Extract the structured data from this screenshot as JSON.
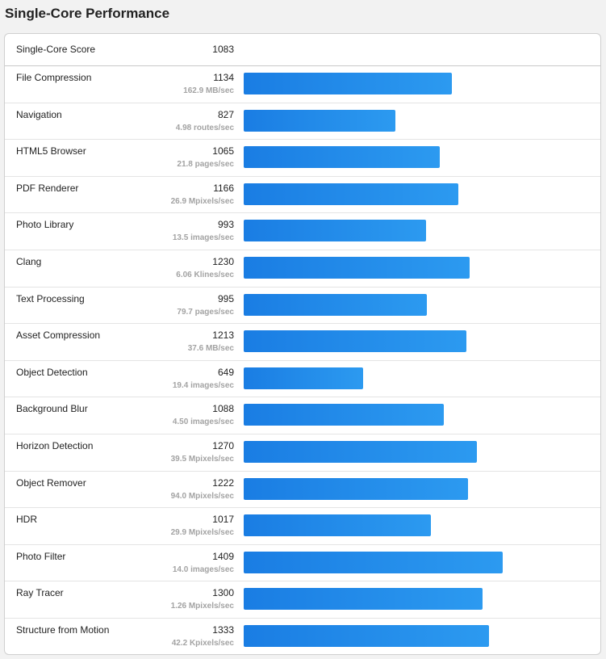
{
  "title": "Single-Core Performance",
  "summary": {
    "label": "Single-Core Score",
    "score": "1083"
  },
  "bar_scale_max": 1800,
  "colors": {
    "bar_start": "#1a7de3",
    "bar_end": "#2c9af0"
  },
  "benchmarks": [
    {
      "name": "File Compression",
      "score": "1134",
      "rate": "162.9 MB/sec"
    },
    {
      "name": "Navigation",
      "score": "827",
      "rate": "4.98 routes/sec"
    },
    {
      "name": "HTML5 Browser",
      "score": "1065",
      "rate": "21.8 pages/sec"
    },
    {
      "name": "PDF Renderer",
      "score": "1166",
      "rate": "26.9 Mpixels/sec"
    },
    {
      "name": "Photo Library",
      "score": "993",
      "rate": "13.5 images/sec"
    },
    {
      "name": "Clang",
      "score": "1230",
      "rate": "6.06 Klines/sec"
    },
    {
      "name": "Text Processing",
      "score": "995",
      "rate": "79.7 pages/sec"
    },
    {
      "name": "Asset Compression",
      "score": "1213",
      "rate": "37.6 MB/sec"
    },
    {
      "name": "Object Detection",
      "score": "649",
      "rate": "19.4 images/sec"
    },
    {
      "name": "Background Blur",
      "score": "1088",
      "rate": "4.50 images/sec"
    },
    {
      "name": "Horizon Detection",
      "score": "1270",
      "rate": "39.5 Mpixels/sec"
    },
    {
      "name": "Object Remover",
      "score": "1222",
      "rate": "94.0 Mpixels/sec"
    },
    {
      "name": "HDR",
      "score": "1017",
      "rate": "29.9 Mpixels/sec"
    },
    {
      "name": "Photo Filter",
      "score": "1409",
      "rate": "14.0 images/sec"
    },
    {
      "name": "Ray Tracer",
      "score": "1300",
      "rate": "1.26 Mpixels/sec"
    },
    {
      "name": "Structure from Motion",
      "score": "1333",
      "rate": "42.2 Kpixels/sec"
    }
  ]
}
